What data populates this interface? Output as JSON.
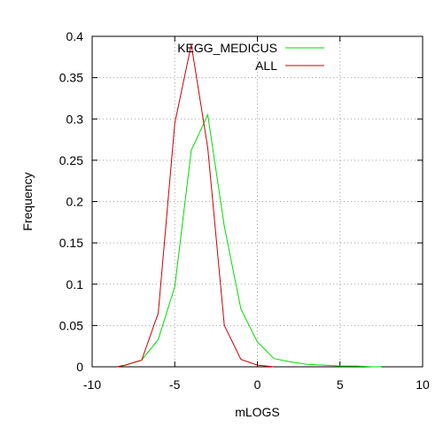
{
  "chart_data": {
    "type": "line",
    "xlabel": "mLOGS",
    "ylabel": "Frequency",
    "xlim": [
      -10,
      10
    ],
    "ylim": [
      0,
      0.4
    ],
    "x_ticks": [
      -10,
      -5,
      0,
      5,
      10
    ],
    "y_ticks": [
      0,
      0.05,
      0.1,
      0.15,
      0.2,
      0.25,
      0.3,
      0.35,
      0.4
    ],
    "x_tick_labels": [
      "-10",
      "-5",
      "0",
      "5",
      "10"
    ],
    "y_tick_labels": [
      "0",
      "0.05",
      "0.1",
      "0.15",
      "0.2",
      "0.25",
      "0.3",
      "0.35",
      "0.4"
    ],
    "grid": true,
    "legend_position": "top-right",
    "series": [
      {
        "name": "KEGG_MEDICUS",
        "color": "#00dd00",
        "points": [
          [
            -8.5,
            0.0
          ],
          [
            -8,
            0.002
          ],
          [
            -7,
            0.008
          ],
          [
            -6,
            0.033
          ],
          [
            -5,
            0.097
          ],
          [
            -4,
            0.262
          ],
          [
            -3,
            0.305
          ],
          [
            -2,
            0.17
          ],
          [
            -1,
            0.07
          ],
          [
            0,
            0.03
          ],
          [
            1,
            0.01
          ],
          [
            2,
            0.006
          ],
          [
            3,
            0.003
          ],
          [
            4,
            0.002
          ],
          [
            5,
            0.001
          ],
          [
            6,
            0.001
          ],
          [
            7,
            0.0
          ],
          [
            7.5,
            0.0
          ]
        ]
      },
      {
        "name": "ALL",
        "color": "#cc0000",
        "points": [
          [
            -8.5,
            0.0
          ],
          [
            -8,
            0.002
          ],
          [
            -7,
            0.008
          ],
          [
            -6,
            0.065
          ],
          [
            -5,
            0.295
          ],
          [
            -4,
            0.39
          ],
          [
            -3,
            0.265
          ],
          [
            -2,
            0.05
          ],
          [
            -1,
            0.009
          ],
          [
            0,
            0.002
          ],
          [
            1,
            0.0
          ]
        ]
      }
    ]
  }
}
